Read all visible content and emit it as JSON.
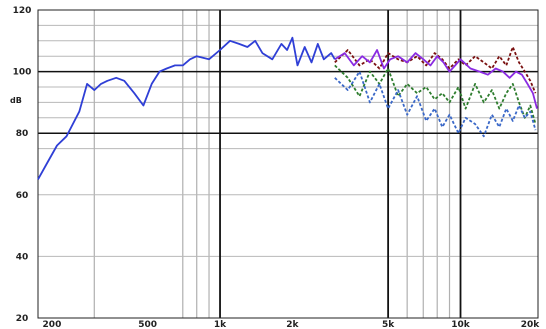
{
  "chart_data": {
    "type": "line",
    "title": "",
    "xlabel": "",
    "ylabel": "dB",
    "x_scale": "log",
    "xlim": [
      175,
      21000
    ],
    "ylim": [
      20,
      120
    ],
    "grid": true,
    "legend": "none",
    "y_ticks": [
      {
        "value": 120,
        "label": "120"
      },
      {
        "value": 100,
        "label": "100"
      },
      {
        "value": 80,
        "label": "80"
      },
      {
        "value": 60,
        "label": "60"
      },
      {
        "value": 40,
        "label": "40"
      },
      {
        "value": 20,
        "label": "20"
      }
    ],
    "x_ticks": [
      {
        "value": 200,
        "label": "200"
      },
      {
        "value": 500,
        "label": "500"
      },
      {
        "value": 1000,
        "label": "1k"
      },
      {
        "value": 2000,
        "label": "2k"
      },
      {
        "value": 5000,
        "label": "5k"
      },
      {
        "value": 10000,
        "label": "10k"
      },
      {
        "value": 20000,
        "label": "20k"
      }
    ],
    "y_grid_minor": [
      115,
      110,
      105,
      95,
      90,
      85,
      75
    ],
    "x_grid_light": [
      300,
      700,
      800,
      900,
      6000,
      7000,
      8000,
      9000
    ],
    "x_grid_dark": [
      1000,
      5000,
      10000
    ],
    "y_grid_dark": [
      100,
      80
    ],
    "series": [
      {
        "color": "#7a1010",
        "dash": "3,2",
        "x": [
          3000,
          3400,
          3800,
          4200,
          4600,
          5000,
          5500,
          6000,
          6600,
          7200,
          7800,
          8400,
          9000,
          9800,
          10500,
          11500,
          12500,
          13500,
          14500,
          15500,
          16500,
          17500,
          18500,
          19500,
          20500
        ],
        "y": [
          103,
          107,
          102,
          104,
          101,
          106,
          104,
          103,
          105,
          102,
          106,
          104,
          101,
          104,
          102,
          105,
          103,
          101,
          105,
          102,
          108,
          103,
          100,
          97,
          93
        ]
      },
      {
        "color": "#2e7d2e",
        "dash": "3,2",
        "x": [
          3000,
          3400,
          3800,
          4200,
          4600,
          5000,
          5500,
          6000,
          6600,
          7200,
          7800,
          8400,
          9000,
          9800,
          10500,
          11500,
          12500,
          13500,
          14500,
          15500,
          16500,
          17500,
          18500,
          19500,
          20500
        ],
        "y": [
          102,
          98,
          92,
          100,
          96,
          101,
          92,
          96,
          93,
          95,
          91,
          93,
          90,
          95,
          88,
          96,
          90,
          94,
          88,
          93,
          96,
          90,
          85,
          89,
          83
        ]
      },
      {
        "color": "#8a2be2",
        "dash": "",
        "x": [
          3000,
          3300,
          3600,
          3900,
          4200,
          4500,
          4800,
          5100,
          5500,
          6000,
          6500,
          7000,
          7500,
          8000,
          8500,
          9000,
          9500,
          10000,
          11000,
          12000,
          13000,
          14000,
          15000,
          16000,
          17000,
          18000,
          19000,
          20000,
          20800
        ],
        "y": [
          104,
          106,
          102,
          105,
          103,
          107,
          101,
          104,
          105,
          103,
          106,
          104,
          102,
          105,
          103,
          100,
          102,
          104,
          101,
          100,
          99,
          101,
          100,
          98,
          100,
          99,
          96,
          93,
          88
        ]
      },
      {
        "color": "#3a68c8",
        "dash": "3,2",
        "x": [
          3000,
          3400,
          3800,
          4200,
          4600,
          5000,
          5500,
          6000,
          6600,
          7200,
          7800,
          8400,
          9000,
          9800,
          10500,
          11500,
          12500,
          13500,
          14500,
          15500,
          16500,
          17500,
          18500,
          19500,
          20500
        ],
        "y": [
          98,
          94,
          100,
          90,
          96,
          88,
          94,
          86,
          92,
          84,
          88,
          82,
          86,
          80,
          85,
          83,
          79,
          86,
          82,
          88,
          84,
          89,
          85,
          87,
          81
        ]
      },
      {
        "color": "#2f3fd6",
        "dash": "",
        "x": [
          175,
          190,
          210,
          230,
          260,
          280,
          300,
          320,
          340,
          370,
          400,
          440,
          480,
          520,
          560,
          600,
          650,
          700,
          750,
          800,
          900,
          1000,
          1100,
          1200,
          1300,
          1400,
          1500,
          1650,
          1800,
          1900,
          2000,
          2100,
          2250,
          2400,
          2550,
          2700,
          2900,
          3000
        ],
        "y": [
          65,
          70,
          76,
          79,
          87,
          96,
          94,
          96,
          97,
          98,
          97,
          93,
          89,
          96,
          100,
          101,
          102,
          102,
          104,
          105,
          104,
          107,
          110,
          109,
          108,
          110,
          106,
          104,
          109,
          107,
          111,
          102,
          108,
          103,
          109,
          104,
          106,
          104
        ]
      }
    ]
  }
}
